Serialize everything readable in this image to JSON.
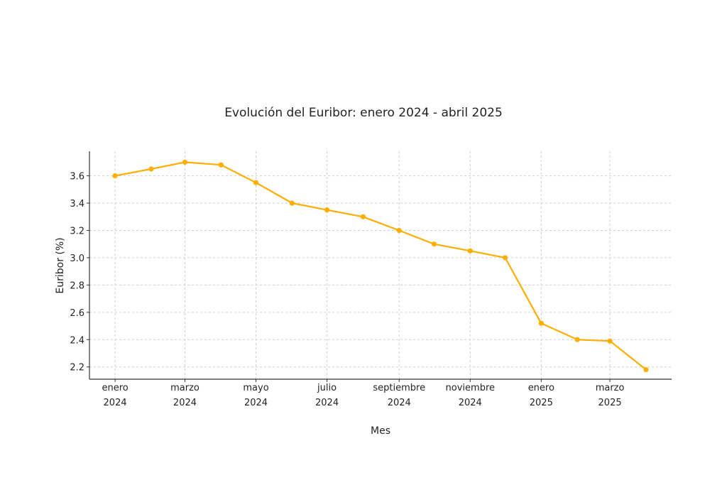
{
  "chart_data": {
    "type": "line",
    "title": "Evolución del Euribor: enero 2024 - abril 2025",
    "xlabel": "Mes",
    "ylabel": "Euribor (%)",
    "x": [
      "2024-01-01",
      "2024-02-01",
      "2024-03-01",
      "2024-04-01",
      "2024-05-01",
      "2024-06-01",
      "2024-07-01",
      "2024-08-01",
      "2024-09-01",
      "2024-10-01",
      "2024-11-01",
      "2024-12-01",
      "2025-01-01",
      "2025-02-01",
      "2025-03-01",
      "2025-04-01"
    ],
    "series": [
      {
        "values": [
          3.6,
          3.65,
          3.7,
          3.68,
          3.55,
          3.4,
          3.35,
          3.3,
          3.2,
          3.1,
          3.05,
          3.0,
          2.52,
          2.4,
          2.39,
          2.18
        ],
        "color": "#FFAE00",
        "marker": "circle"
      }
    ],
    "xlim": [
      "2023-12-10",
      "2025-04-23"
    ],
    "ylim": [
      2.11,
      3.78
    ],
    "yticks": [
      2.2,
      2.4,
      2.6,
      2.8,
      3.0,
      3.2,
      3.4,
      3.6
    ],
    "ytick_labels": [
      "2.2",
      "2.4",
      "2.6",
      "2.8",
      "3.0",
      "3.2",
      "3.4",
      "3.6"
    ],
    "xticks": [
      {
        "date": "2024-01-01",
        "line1": "enero",
        "line2": "2024"
      },
      {
        "date": "2024-03-01",
        "line1": "marzo",
        "line2": "2024"
      },
      {
        "date": "2024-05-01",
        "line1": "mayo",
        "line2": "2024"
      },
      {
        "date": "2024-07-01",
        "line1": "julio",
        "line2": "2024"
      },
      {
        "date": "2024-09-01",
        "line1": "septiembre",
        "line2": "2024"
      },
      {
        "date": "2024-11-01",
        "line1": "noviembre",
        "line2": "2024"
      },
      {
        "date": "2025-01-01",
        "line1": "enero",
        "line2": "2025"
      },
      {
        "date": "2025-03-01",
        "line1": "marzo",
        "line2": "2025"
      }
    ],
    "grid": true,
    "legend": "none"
  }
}
